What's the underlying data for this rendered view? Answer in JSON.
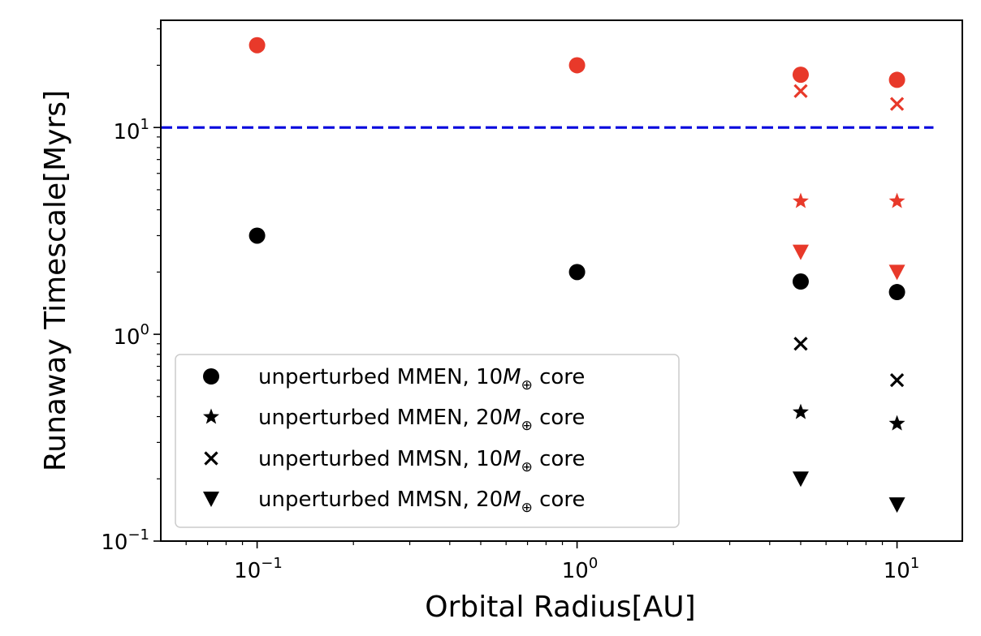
{
  "chart_data": {
    "type": "scatter",
    "xlabel": "Orbital Radius[AU]",
    "ylabel": "Runaway Timescale[Myrs]",
    "x_scale": "log",
    "y_scale": "log",
    "xlim": [
      0.05,
      16
    ],
    "ylim": [
      0.1,
      33
    ],
    "x_ticks": [
      {
        "value": 0.1,
        "base": "10",
        "exp": "−1"
      },
      {
        "value": 1,
        "base": "10",
        "exp": "0"
      },
      {
        "value": 10,
        "base": "10",
        "exp": "1"
      }
    ],
    "y_ticks": [
      {
        "value": 0.1,
        "base": "10",
        "exp": "−1"
      },
      {
        "value": 1,
        "base": "10",
        "exp": "0"
      },
      {
        "value": 10,
        "base": "10",
        "exp": "1"
      }
    ],
    "reference_line": {
      "y": 10,
      "color": "#0000dd",
      "style": "dashed",
      "x_range": [
        0.05,
        13
      ]
    },
    "legend": {
      "placement": "lower-left",
      "entries": [
        {
          "marker": "circle",
          "pre": "unperturbed MMEN, 10",
          "m": "M",
          "sub": "⊕",
          "post": " core"
        },
        {
          "marker": "star",
          "pre": "unperturbed MMEN, 20",
          "m": "M",
          "sub": "⊕",
          "post": " core"
        },
        {
          "marker": "x",
          "pre": "unperturbed MMSN, 10",
          "m": "M",
          "sub": "⊕",
          "post": " core"
        },
        {
          "marker": "triangle-down",
          "pre": "unperturbed MMSN, 20",
          "m": "M",
          "sub": "⊕",
          "post": " core"
        }
      ]
    },
    "series": [
      {
        "marker": "circle",
        "color": "#000000",
        "points": [
          [
            0.1,
            3.0
          ],
          [
            1,
            2.0
          ],
          [
            5,
            1.8
          ],
          [
            10,
            1.6
          ]
        ]
      },
      {
        "marker": "star",
        "color": "#000000",
        "points": [
          [
            5,
            0.42
          ],
          [
            10,
            0.37
          ]
        ]
      },
      {
        "marker": "x",
        "color": "#000000",
        "points": [
          [
            5,
            0.9
          ],
          [
            10,
            0.6
          ]
        ]
      },
      {
        "marker": "triangle-down",
        "color": "#000000",
        "points": [
          [
            5,
            0.2
          ],
          [
            10,
            0.15
          ]
        ]
      },
      {
        "marker": "circle",
        "color": "#e8392a",
        "points": [
          [
            0.1,
            25
          ],
          [
            1,
            20
          ],
          [
            5,
            18
          ],
          [
            10,
            17
          ]
        ]
      },
      {
        "marker": "x",
        "color": "#e8392a",
        "points": [
          [
            5,
            15
          ],
          [
            10,
            13
          ]
        ]
      },
      {
        "marker": "star",
        "color": "#e8392a",
        "points": [
          [
            5,
            4.4
          ],
          [
            10,
            4.4
          ]
        ]
      },
      {
        "marker": "triangle-down",
        "color": "#e8392a",
        "points": [
          [
            5,
            2.5
          ],
          [
            10,
            2.0
          ]
        ]
      }
    ]
  }
}
